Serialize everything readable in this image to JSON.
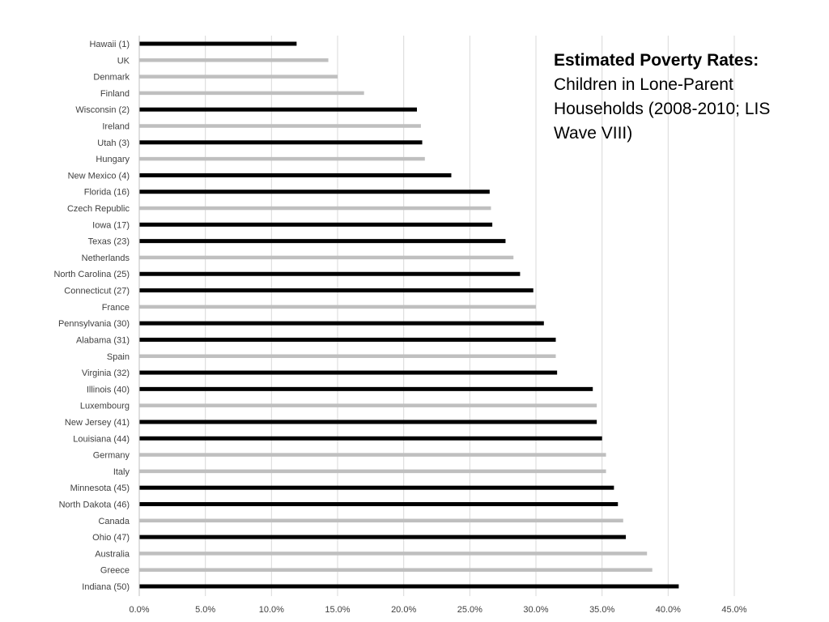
{
  "chart_data": {
    "type": "bar",
    "orientation": "horizontal",
    "title": "Estimated Poverty Rates:",
    "subtitle": "Children in Lone-Parent Households (2008-2010; LIS Wave VIII)",
    "categories": [
      "Hawaii (1)",
      "UK",
      "Denmark",
      "Finland",
      "Wisconsin (2)",
      "Ireland",
      "Utah (3)",
      "Hungary",
      "New Mexico (4)",
      "Florida (16)",
      "Czech Republic",
      "Iowa (17)",
      "Texas (23)",
      "Netherlands",
      "North Carolina (25)",
      "Connecticut (27)",
      "France",
      "Pennsylvania (30)",
      "Alabama (31)",
      "Spain",
      "Virginia (32)",
      "Illinois (40)",
      "Luxembourg",
      "New Jersey (41)",
      "Louisiana (44)",
      "Germany",
      "Italy",
      "Minnesota (45)",
      "North Dakota (46)",
      "Canada",
      "Ohio (47)",
      "Australia",
      "Greece",
      "Indiana (50)"
    ],
    "values": [
      11.9,
      14.3,
      15.0,
      17.0,
      21.0,
      21.3,
      21.4,
      21.6,
      23.6,
      26.5,
      26.6,
      26.7,
      27.7,
      28.3,
      28.8,
      29.8,
      30.0,
      30.6,
      31.5,
      31.5,
      31.6,
      34.3,
      34.6,
      34.6,
      35.0,
      35.3,
      35.3,
      35.9,
      36.2,
      36.6,
      36.8,
      38.4,
      38.8,
      40.8
    ],
    "groups": [
      "state",
      "country",
      "country",
      "country",
      "state",
      "country",
      "state",
      "country",
      "state",
      "state",
      "country",
      "state",
      "state",
      "country",
      "state",
      "state",
      "country",
      "state",
      "state",
      "country",
      "state",
      "state",
      "country",
      "state",
      "state",
      "country",
      "country",
      "state",
      "state",
      "country",
      "state",
      "country",
      "country",
      "state"
    ],
    "colors": {
      "state": "#000000",
      "country": "#bfbfbf",
      "grid": "#d9d9d9",
      "axis": "#bfbfbf"
    },
    "xlim": [
      0,
      45
    ],
    "xticks": [
      0,
      5,
      10,
      15,
      20,
      25,
      30,
      35,
      40,
      45
    ],
    "xtick_labels": [
      "0.0%",
      "5.0%",
      "10.0%",
      "15.0%",
      "20.0%",
      "25.0%",
      "30.0%",
      "35.0%",
      "40.0%",
      "45.0%"
    ],
    "grid": true,
    "legend": false
  }
}
